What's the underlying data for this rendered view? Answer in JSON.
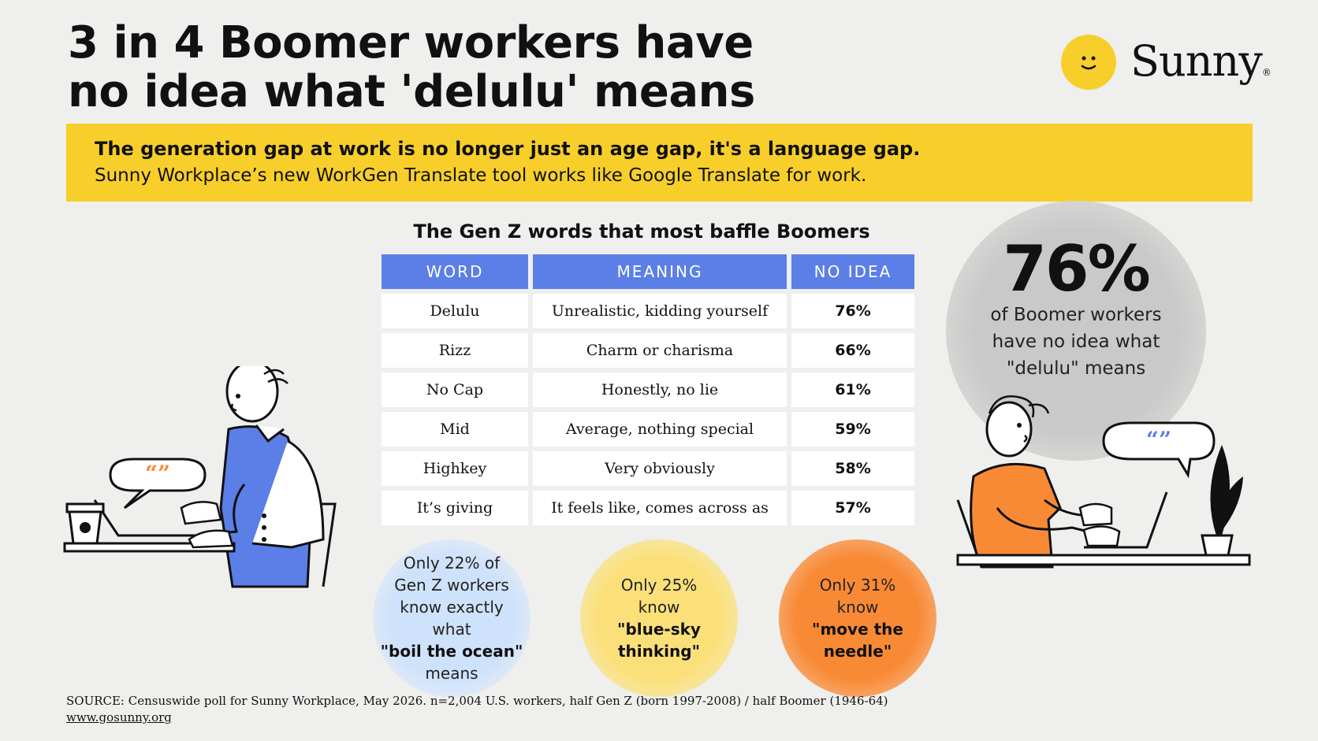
{
  "headline": {
    "line1": "3 in 4 Boomer workers have",
    "line2": "no idea what 'delulu' means"
  },
  "brand": {
    "name": "Sunny",
    "registered": "®"
  },
  "banner": {
    "bold": "The generation gap at work is no longer just an age gap, it's a language gap.",
    "regular": "Sunny Workplace’s new WorkGen Translate tool works like Google Translate for work."
  },
  "table": {
    "title": "The Gen Z words that most baffle Boomers",
    "headers": [
      "WORD",
      "MEANING",
      "NO IDEA"
    ],
    "rows": [
      {
        "word": "Delulu",
        "meaning": "Unrealistic, kidding yourself",
        "pct": "76%"
      },
      {
        "word": "Rizz",
        "meaning": "Charm or charisma",
        "pct": "66%"
      },
      {
        "word": "No Cap",
        "meaning": "Honestly, no lie",
        "pct": "61%"
      },
      {
        "word": "Mid",
        "meaning": "Average, nothing special",
        "pct": "59%"
      },
      {
        "word": "Highkey",
        "meaning": "Very obviously",
        "pct": "58%"
      },
      {
        "word": "It’s giving",
        "meaning": "It feels like, comes across as",
        "pct": "57%"
      }
    ]
  },
  "bubbles": [
    {
      "pre": "Only 22% of Gen Z workers know exactly what",
      "term": "\"boil the ocean\"",
      "post": "means"
    },
    {
      "pre": "Only 25% know",
      "term": "\"blue-sky thinking\"",
      "post": ""
    },
    {
      "pre": "Only 31% know",
      "term": "\"move the needle\"",
      "post": ""
    }
  ],
  "stat": {
    "value": "76%",
    "line1": "of Boomer workers",
    "line2": "have no idea what",
    "line3": "\"delulu\" means"
  },
  "speech_glyph": "“”",
  "source": {
    "text": "SOURCE: Censuswide poll for Sunny Workplace, May 2026. n=2,004 U.S. workers, half Gen Z (born 1997-2008) / half Boomer (1946-64)",
    "url": "www.gosunny.org"
  },
  "colors": {
    "yellow": "#f8cf2a",
    "blue_header": "#5b7fe6",
    "orange": "#f98a35",
    "light_blue": "#cfe2fb"
  }
}
